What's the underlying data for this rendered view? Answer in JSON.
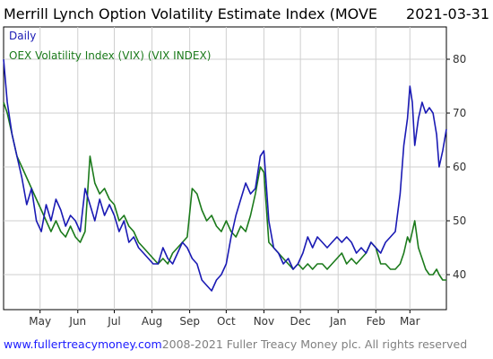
{
  "header": {
    "title": "Merrill Lynch Option Volatility Estimate Index (MOVE",
    "date": "2021-03-31"
  },
  "footer": {
    "site": "www.fullertreacymoney.com",
    "copyright": "2008-2021 Fuller Treacy Money plc. All rights reserved"
  },
  "colors": {
    "move": "#1a1ab4",
    "vix": "#1b7a1b",
    "grid": "#cfcfcf",
    "axis": "#000000"
  },
  "chart_data": {
    "type": "line",
    "title": "Merrill Lynch Option Volatility Estimate Index (MOVE",
    "date_label": "2021-03-31",
    "frequency_label": "Daily",
    "xlabel": "",
    "ylabel": "",
    "ylim": [
      33.5,
      86
    ],
    "yticks": [
      40,
      50,
      60,
      70,
      80
    ],
    "y_axis_side": "right",
    "grid": true,
    "legend_position": "top-left",
    "x_range": [
      "2020-04-01",
      "2021-03-31"
    ],
    "x_ticks": [
      {
        "date": "2020-05-01",
        "label": "May"
      },
      {
        "date": "2020-06-01",
        "label": "Jun"
      },
      {
        "date": "2020-07-01",
        "label": "Jul"
      },
      {
        "date": "2020-08-01",
        "label": "Aug"
      },
      {
        "date": "2020-09-01",
        "label": "Sep"
      },
      {
        "date": "2020-10-01",
        "label": "Oct"
      },
      {
        "date": "2020-11-01",
        "label": "Nov"
      },
      {
        "date": "2020-12-01",
        "label": "Dec"
      },
      {
        "date": "2021-01-01",
        "label": "Jan"
      },
      {
        "date": "2021-02-01",
        "label": "Feb"
      },
      {
        "date": "2021-03-01",
        "label": "Mar"
      }
    ],
    "series": [
      {
        "name": "",
        "color": "#1a1ab4",
        "points": [
          [
            "2020-04-01",
            80
          ],
          [
            "2020-04-04",
            72
          ],
          [
            "2020-04-08",
            66
          ],
          [
            "2020-04-12",
            62
          ],
          [
            "2020-04-16",
            58
          ],
          [
            "2020-04-20",
            53
          ],
          [
            "2020-04-24",
            56
          ],
          [
            "2020-04-28",
            50
          ],
          [
            "2020-05-02",
            48
          ],
          [
            "2020-05-06",
            53
          ],
          [
            "2020-05-10",
            50
          ],
          [
            "2020-05-14",
            54
          ],
          [
            "2020-05-18",
            52
          ],
          [
            "2020-05-22",
            49
          ],
          [
            "2020-05-26",
            51
          ],
          [
            "2020-05-30",
            50
          ],
          [
            "2020-06-03",
            48
          ],
          [
            "2020-06-07",
            56
          ],
          [
            "2020-06-11",
            53
          ],
          [
            "2020-06-15",
            50
          ],
          [
            "2020-06-19",
            54
          ],
          [
            "2020-06-23",
            51
          ],
          [
            "2020-06-27",
            53
          ],
          [
            "2020-07-01",
            51
          ],
          [
            "2020-07-05",
            48
          ],
          [
            "2020-07-09",
            50
          ],
          [
            "2020-07-13",
            46
          ],
          [
            "2020-07-17",
            47
          ],
          [
            "2020-07-21",
            45
          ],
          [
            "2020-07-25",
            44
          ],
          [
            "2020-07-29",
            43
          ],
          [
            "2020-08-02",
            42
          ],
          [
            "2020-08-06",
            42
          ],
          [
            "2020-08-10",
            45
          ],
          [
            "2020-08-14",
            43
          ],
          [
            "2020-08-18",
            42
          ],
          [
            "2020-08-22",
            44
          ],
          [
            "2020-08-26",
            46
          ],
          [
            "2020-08-30",
            45
          ],
          [
            "2020-09-03",
            43
          ],
          [
            "2020-09-07",
            42
          ],
          [
            "2020-09-11",
            39
          ],
          [
            "2020-09-15",
            38
          ],
          [
            "2020-09-19",
            37
          ],
          [
            "2020-09-23",
            39
          ],
          [
            "2020-09-27",
            40
          ],
          [
            "2020-10-01",
            42
          ],
          [
            "2020-10-05",
            47
          ],
          [
            "2020-10-09",
            51
          ],
          [
            "2020-10-13",
            54
          ],
          [
            "2020-10-17",
            57
          ],
          [
            "2020-10-21",
            55
          ],
          [
            "2020-10-25",
            56
          ],
          [
            "2020-10-29",
            62
          ],
          [
            "2020-11-01",
            63
          ],
          [
            "2020-11-05",
            50
          ],
          [
            "2020-11-09",
            45
          ],
          [
            "2020-11-13",
            44
          ],
          [
            "2020-11-17",
            42
          ],
          [
            "2020-11-21",
            43
          ],
          [
            "2020-11-25",
            41
          ],
          [
            "2020-11-29",
            42
          ],
          [
            "2020-12-03",
            44
          ],
          [
            "2020-12-07",
            47
          ],
          [
            "2020-12-11",
            45
          ],
          [
            "2020-12-15",
            47
          ],
          [
            "2020-12-19",
            46
          ],
          [
            "2020-12-23",
            45
          ],
          [
            "2020-12-27",
            46
          ],
          [
            "2020-12-31",
            47
          ],
          [
            "2021-01-04",
            46
          ],
          [
            "2021-01-08",
            47
          ],
          [
            "2021-01-12",
            46
          ],
          [
            "2021-01-16",
            44
          ],
          [
            "2021-01-20",
            45
          ],
          [
            "2021-01-24",
            44
          ],
          [
            "2021-01-28",
            46
          ],
          [
            "2021-02-01",
            45
          ],
          [
            "2021-02-05",
            44
          ],
          [
            "2021-02-09",
            46
          ],
          [
            "2021-02-13",
            47
          ],
          [
            "2021-02-17",
            48
          ],
          [
            "2021-02-21",
            55
          ],
          [
            "2021-02-24",
            64
          ],
          [
            "2021-02-27",
            69
          ],
          [
            "2021-03-01",
            75
          ],
          [
            "2021-03-03",
            72
          ],
          [
            "2021-03-05",
            64
          ],
          [
            "2021-03-08",
            69
          ],
          [
            "2021-03-11",
            72
          ],
          [
            "2021-03-14",
            70
          ],
          [
            "2021-03-17",
            71
          ],
          [
            "2021-03-20",
            70
          ],
          [
            "2021-03-23",
            66
          ],
          [
            "2021-03-25",
            60
          ],
          [
            "2021-03-28",
            63
          ],
          [
            "2021-03-31",
            67
          ]
        ]
      },
      {
        "name": "OEX Volatility Index (VIX) (VIX INDEX)",
        "color": "#1b7a1b",
        "points": [
          [
            "2020-04-01",
            72
          ],
          [
            "2020-04-04",
            70
          ],
          [
            "2020-04-08",
            66
          ],
          [
            "2020-04-12",
            62
          ],
          [
            "2020-04-16",
            60
          ],
          [
            "2020-04-20",
            58
          ],
          [
            "2020-04-24",
            56
          ],
          [
            "2020-04-28",
            54
          ],
          [
            "2020-05-02",
            52
          ],
          [
            "2020-05-06",
            50
          ],
          [
            "2020-05-10",
            48
          ],
          [
            "2020-05-14",
            50
          ],
          [
            "2020-05-18",
            48
          ],
          [
            "2020-05-22",
            47
          ],
          [
            "2020-05-26",
            49
          ],
          [
            "2020-05-30",
            47
          ],
          [
            "2020-06-03",
            46
          ],
          [
            "2020-06-07",
            48
          ],
          [
            "2020-06-11",
            62
          ],
          [
            "2020-06-15",
            57
          ],
          [
            "2020-06-19",
            55
          ],
          [
            "2020-06-23",
            56
          ],
          [
            "2020-06-27",
            54
          ],
          [
            "2020-07-01",
            53
          ],
          [
            "2020-07-05",
            50
          ],
          [
            "2020-07-09",
            51
          ],
          [
            "2020-07-13",
            49
          ],
          [
            "2020-07-17",
            48
          ],
          [
            "2020-07-21",
            46
          ],
          [
            "2020-07-25",
            45
          ],
          [
            "2020-07-29",
            44
          ],
          [
            "2020-08-02",
            43
          ],
          [
            "2020-08-06",
            42
          ],
          [
            "2020-08-10",
            43
          ],
          [
            "2020-08-14",
            42
          ],
          [
            "2020-08-18",
            44
          ],
          [
            "2020-08-22",
            45
          ],
          [
            "2020-08-26",
            46
          ],
          [
            "2020-08-30",
            47
          ],
          [
            "2020-09-03",
            56
          ],
          [
            "2020-09-07",
            55
          ],
          [
            "2020-09-11",
            52
          ],
          [
            "2020-09-15",
            50
          ],
          [
            "2020-09-19",
            51
          ],
          [
            "2020-09-23",
            49
          ],
          [
            "2020-09-27",
            48
          ],
          [
            "2020-10-01",
            50
          ],
          [
            "2020-10-05",
            48
          ],
          [
            "2020-10-09",
            47
          ],
          [
            "2020-10-13",
            49
          ],
          [
            "2020-10-17",
            48
          ],
          [
            "2020-10-21",
            51
          ],
          [
            "2020-10-25",
            55
          ],
          [
            "2020-10-29",
            60
          ],
          [
            "2020-11-01",
            59
          ],
          [
            "2020-11-05",
            46
          ],
          [
            "2020-11-09",
            45
          ],
          [
            "2020-11-13",
            44
          ],
          [
            "2020-11-17",
            43
          ],
          [
            "2020-11-21",
            42
          ],
          [
            "2020-11-25",
            41
          ],
          [
            "2020-11-29",
            42
          ],
          [
            "2020-12-03",
            41
          ],
          [
            "2020-12-07",
            42
          ],
          [
            "2020-12-11",
            41
          ],
          [
            "2020-12-15",
            42
          ],
          [
            "2020-12-19",
            42
          ],
          [
            "2020-12-23",
            41
          ],
          [
            "2020-12-27",
            42
          ],
          [
            "2020-12-31",
            43
          ],
          [
            "2021-01-04",
            44
          ],
          [
            "2021-01-08",
            42
          ],
          [
            "2021-01-12",
            43
          ],
          [
            "2021-01-16",
            42
          ],
          [
            "2021-01-20",
            43
          ],
          [
            "2021-01-24",
            44
          ],
          [
            "2021-01-28",
            46
          ],
          [
            "2021-02-01",
            45
          ],
          [
            "2021-02-05",
            42
          ],
          [
            "2021-02-09",
            42
          ],
          [
            "2021-02-13",
            41
          ],
          [
            "2021-02-17",
            41
          ],
          [
            "2021-02-21",
            42
          ],
          [
            "2021-02-24",
            44
          ],
          [
            "2021-02-27",
            47
          ],
          [
            "2021-03-01",
            46
          ],
          [
            "2021-03-03",
            48
          ],
          [
            "2021-03-05",
            50
          ],
          [
            "2021-03-08",
            45
          ],
          [
            "2021-03-11",
            43
          ],
          [
            "2021-03-14",
            41
          ],
          [
            "2021-03-17",
            40
          ],
          [
            "2021-03-20",
            40
          ],
          [
            "2021-03-23",
            41
          ],
          [
            "2021-03-25",
            40
          ],
          [
            "2021-03-28",
            39
          ],
          [
            "2021-03-31",
            39
          ]
        ]
      }
    ]
  }
}
